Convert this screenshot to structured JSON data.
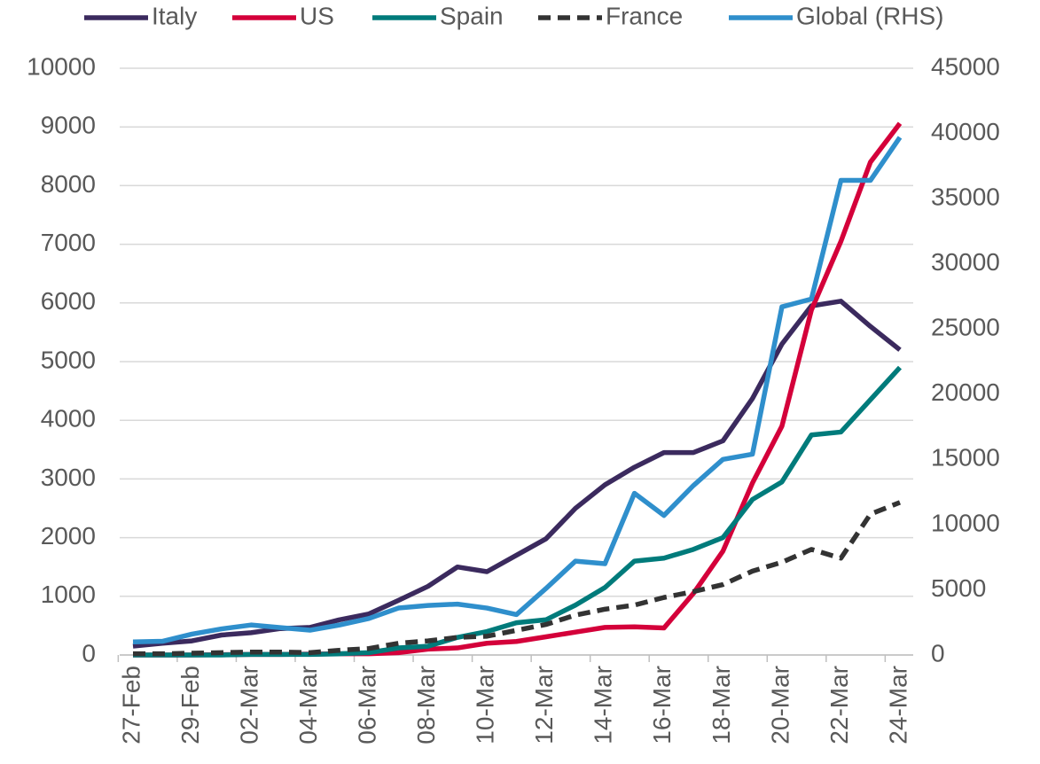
{
  "chart_data": {
    "type": "line",
    "categories": [
      "27-Feb",
      null,
      "29-Feb",
      null,
      "02-Mar",
      null,
      "04-Mar",
      null,
      "06-Mar",
      null,
      "08-Mar",
      null,
      "10-Mar",
      null,
      "12-Mar",
      null,
      "14-Mar",
      null,
      "16-Mar",
      null,
      "18-Mar",
      null,
      "20-Mar",
      null,
      "22-Mar",
      null,
      "24-Mar"
    ],
    "series": [
      {
        "name": "Italy",
        "color": "#3b2a5e",
        "values": [
          150,
          200,
          240,
          340,
          380,
          450,
          470,
          600,
          700,
          930,
          1170,
          1500,
          1420,
          1700,
          1980,
          2500,
          2900,
          3200,
          3450,
          3450,
          3650,
          4370,
          5300,
          5950,
          6030,
          5600,
          5200
        ]
      },
      {
        "name": "US",
        "color": "#d4003a",
        "values": [
          0,
          0,
          0,
          5,
          10,
          10,
          15,
          20,
          20,
          40,
          100,
          120,
          200,
          230,
          310,
          390,
          470,
          480,
          460,
          1050,
          1770,
          2930,
          3900,
          5880,
          7050,
          8400,
          9060
        ]
      },
      {
        "name": "Spain",
        "color": "#007b7b",
        "values": [
          0,
          0,
          0,
          0,
          10,
          10,
          10,
          20,
          40,
          120,
          150,
          300,
          400,
          550,
          600,
          850,
          1150,
          1600,
          1650,
          1800,
          2000,
          2650,
          2950,
          3750,
          3800,
          4350,
          4900
        ]
      },
      {
        "name": "France",
        "color": "#333333",
        "dash": true,
        "values": [
          20,
          20,
          30,
          40,
          50,
          50,
          40,
          80,
          110,
          200,
          240,
          300,
          320,
          420,
          520,
          680,
          780,
          850,
          980,
          1080,
          1200,
          1430,
          1580,
          1800,
          1650,
          2400,
          2600
        ]
      },
      {
        "name": "Global (RHS)",
        "color": "#2f8fcc",
        "axis": "y2",
        "values": [
          1000,
          1050,
          1600,
          2000,
          2300,
          2100,
          1900,
          2300,
          2800,
          3600,
          3800,
          3900,
          3600,
          3100,
          5100,
          7200,
          7000,
          12400,
          10700,
          13000,
          15000,
          15400,
          26700,
          27300,
          36400,
          36400,
          39700
        ]
      }
    ],
    "ylim": [
      0,
      10000
    ],
    "yticks": [
      0,
      1000,
      2000,
      3000,
      4000,
      5000,
      6000,
      7000,
      8000,
      9000,
      10000
    ],
    "y2lim": [
      0,
      45000
    ],
    "y2ticks": [
      0,
      5000,
      10000,
      15000,
      20000,
      25000,
      30000,
      35000,
      40000,
      45000
    ],
    "grid": true,
    "legend": "top"
  }
}
